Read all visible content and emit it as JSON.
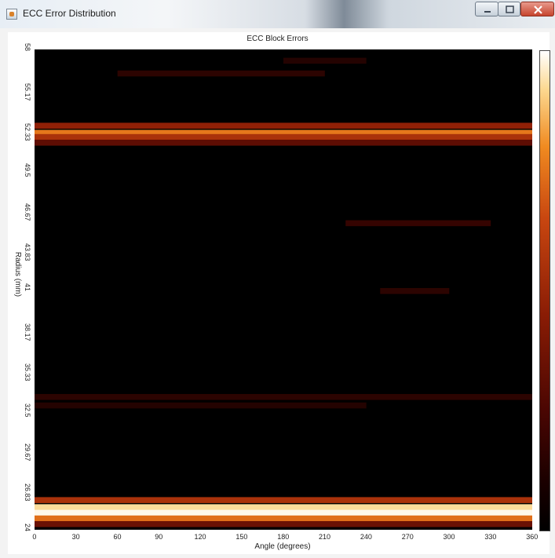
{
  "window": {
    "title": "ECC Error Distribution",
    "minimize_icon": "minimize-icon",
    "maximize_icon": "maximize-icon",
    "close_icon": "close-icon"
  },
  "chart_data": {
    "type": "heatmap",
    "title": "ECC Block Errors",
    "xlabel": "Angle (degrees)",
    "ylabel": "Radius (mm)",
    "xlim": [
      0,
      360
    ],
    "ylim": [
      24,
      58
    ],
    "x_ticks": [
      "0",
      "30",
      "60",
      "90",
      "120",
      "150",
      "180",
      "210",
      "240",
      "270",
      "300",
      "330",
      "360"
    ],
    "y_ticks": [
      "58",
      "55.17",
      "52.33",
      "49.5",
      "46.67",
      "43.83",
      "41",
      "38.17",
      "35.33",
      "32.5",
      "29.67",
      "26.83",
      "24"
    ],
    "colormap": [
      "#000000",
      "#4a0602",
      "#8a1c05",
      "#c84610",
      "#f08a20",
      "#fcd890",
      "#ffffff"
    ],
    "colorbar": true,
    "bands": [
      {
        "radius": 56.3,
        "angle_start": 60,
        "angle_end": 210,
        "intensity": 0.1
      },
      {
        "radius": 57.2,
        "angle_start": 180,
        "angle_end": 240,
        "intensity": 0.08
      },
      {
        "radius": 52.6,
        "angle_start": 0,
        "angle_end": 360,
        "intensity": 0.35
      },
      {
        "radius": 52.1,
        "angle_start": 0,
        "angle_end": 360,
        "intensity": 0.62
      },
      {
        "radius": 51.8,
        "angle_start": 0,
        "angle_end": 360,
        "intensity": 0.42
      },
      {
        "radius": 51.4,
        "angle_start": 0,
        "angle_end": 360,
        "intensity": 0.22
      },
      {
        "radius": 45.7,
        "angle_start": 225,
        "angle_end": 330,
        "intensity": 0.12
      },
      {
        "radius": 40.9,
        "angle_start": 250,
        "angle_end": 300,
        "intensity": 0.1
      },
      {
        "radius": 33.4,
        "angle_start": 0,
        "angle_end": 360,
        "intensity": 0.1
      },
      {
        "radius": 32.8,
        "angle_start": 0,
        "angle_end": 240,
        "intensity": 0.08
      },
      {
        "radius": 26.1,
        "angle_start": 0,
        "angle_end": 360,
        "intensity": 0.42
      },
      {
        "radius": 25.6,
        "angle_start": 0,
        "angle_end": 360,
        "intensity": 0.85
      },
      {
        "radius": 25.2,
        "angle_start": 0,
        "angle_end": 360,
        "intensity": 0.97
      },
      {
        "radius": 24.8,
        "angle_start": 0,
        "angle_end": 360,
        "intensity": 0.6
      },
      {
        "radius": 24.4,
        "angle_start": 0,
        "angle_end": 360,
        "intensity": 0.25
      }
    ]
  }
}
